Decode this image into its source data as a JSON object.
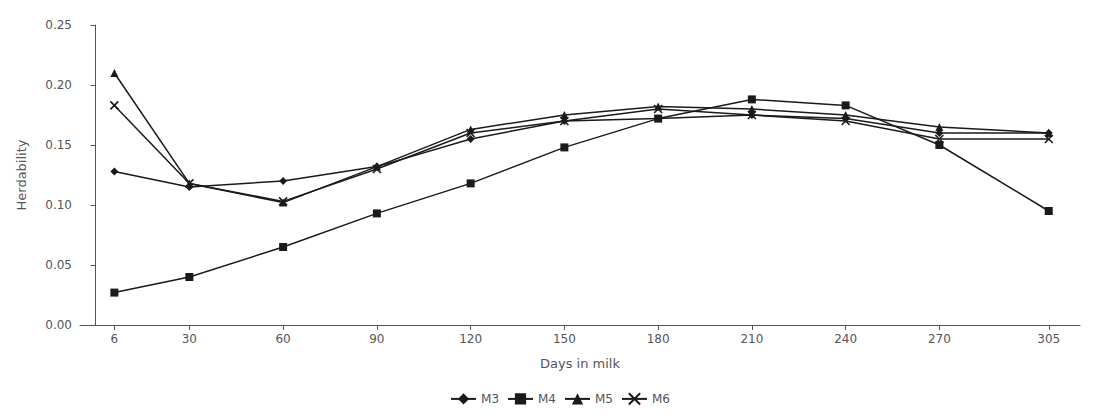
{
  "chart_data": {
    "type": "line",
    "x": [
      6,
      30,
      60,
      90,
      120,
      150,
      180,
      210,
      240,
      270,
      305
    ],
    "series": [
      {
        "name": "M3",
        "color": "#1a1a1a",
        "marker": "diamond",
        "values": [
          0.128,
          0.115,
          0.12,
          0.132,
          0.155,
          0.17,
          0.172,
          0.175,
          0.172,
          0.16,
          0.16
        ]
      },
      {
        "name": "M4",
        "color": "#1a1a1a",
        "marker": "square",
        "values": [
          0.027,
          0.04,
          0.065,
          0.093,
          0.118,
          0.148,
          0.172,
          0.188,
          0.183,
          0.15,
          0.095
        ]
      },
      {
        "name": "M5",
        "color": "#1a1a1a",
        "marker": "triangle",
        "values": [
          0.21,
          0.118,
          0.102,
          0.132,
          0.163,
          0.175,
          0.182,
          0.18,
          0.175,
          0.165,
          0.16
        ]
      },
      {
        "name": "M6",
        "color": "#1a1a1a",
        "marker": "x",
        "values": [
          0.183,
          0.118,
          0.103,
          0.13,
          0.16,
          0.17,
          0.18,
          0.175,
          0.17,
          0.155,
          0.155
        ]
      }
    ],
    "xlabel": "Days in milk",
    "ylabel": "Herdability",
    "xlim": [
      -5,
      315
    ],
    "xticks": [
      6,
      30,
      60,
      90,
      120,
      150,
      180,
      210,
      240,
      270,
      305
    ],
    "ylim": [
      0.0,
      0.25
    ],
    "yticks": [
      {
        "value": 0.0,
        "label": "0.00"
      },
      {
        "value": 0.05,
        "label": "0.05"
      },
      {
        "value": 0.1,
        "label": "0.10"
      },
      {
        "value": 0.15,
        "label": "0.15"
      },
      {
        "value": 0.2,
        "label": "0.20"
      },
      {
        "value": 0.25,
        "label": "0.25"
      }
    ],
    "grid": false,
    "legend": "bottom"
  }
}
